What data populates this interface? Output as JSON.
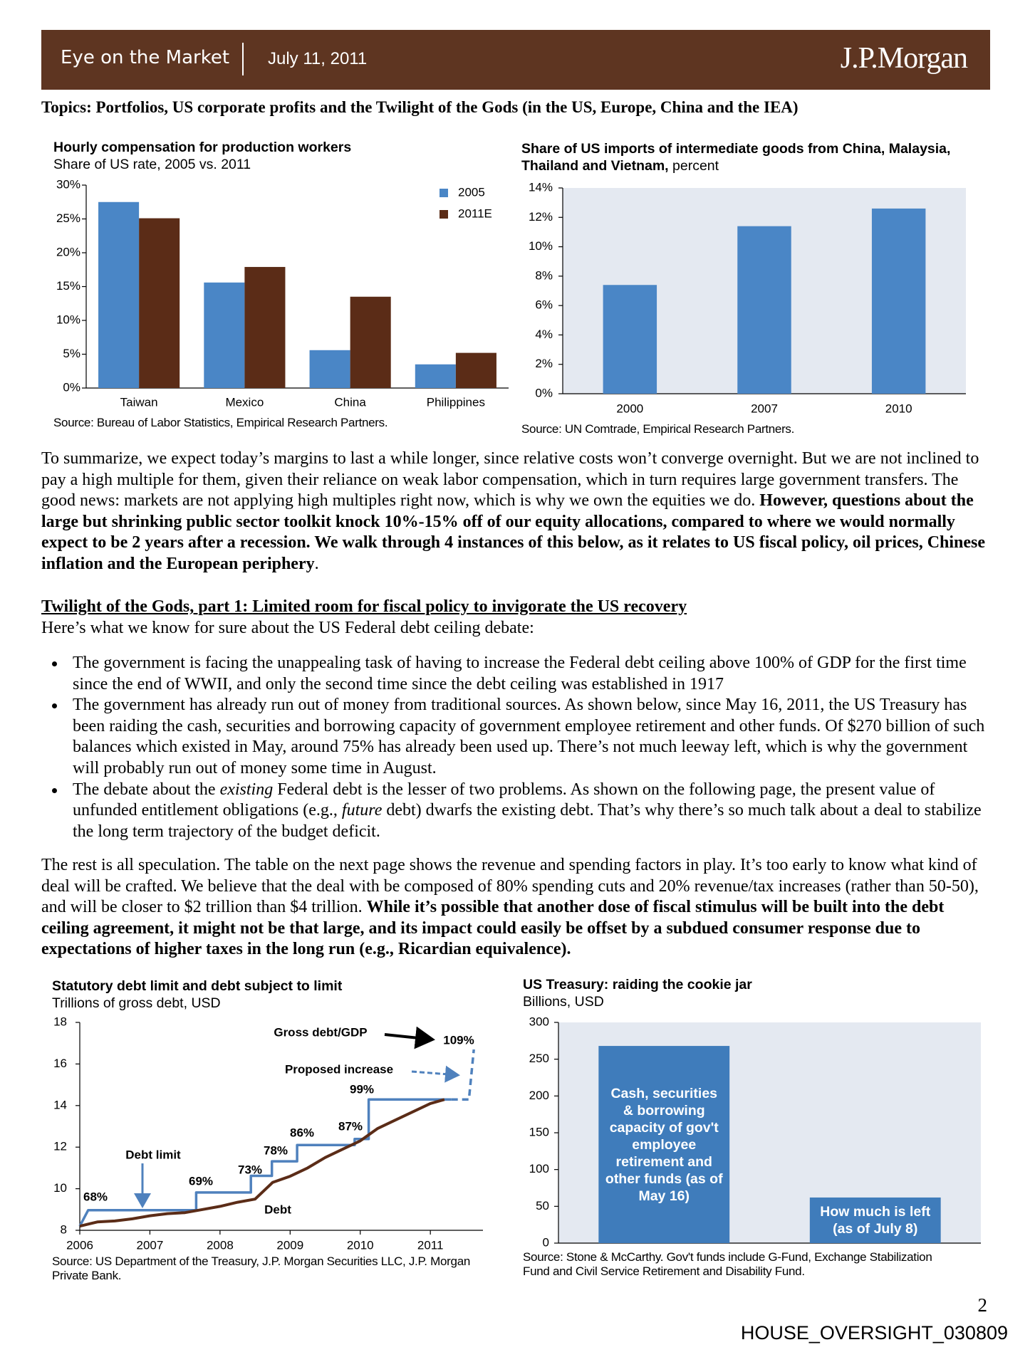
{
  "header": {
    "title": "Eye on the Market",
    "date": "July 11, 2011",
    "brand": "J.P.Morgan"
  },
  "topics": "Topics: Portfolios, US corporate profits and the Twilight of the Gods (in the US, Europe, China and the IEA)",
  "chart_data": [
    {
      "type": "bar",
      "title": "Hourly compensation for production workers",
      "subtitle": "Share of US rate, 2005 vs. 2011",
      "categories": [
        "Taiwan",
        "Mexico",
        "China",
        "Philippines"
      ],
      "series": [
        {
          "name": "2005",
          "color": "#4a86c6",
          "values": [
            27.5,
            15.6,
            5.6,
            3.5
          ]
        },
        {
          "name": "2011E",
          "color": "#5b2c17",
          "values": [
            25.1,
            17.9,
            13.5,
            5.2
          ]
        }
      ],
      "ylim": [
        0,
        30
      ],
      "yticks": [
        {
          "value": 0,
          "label": "0%"
        },
        {
          "value": 5,
          "label": "5%"
        },
        {
          "value": 10,
          "label": "10%"
        },
        {
          "value": 15,
          "label": "15%"
        },
        {
          "value": 20,
          "label": "20%"
        },
        {
          "value": 25,
          "label": "25%"
        },
        {
          "value": 30,
          "label": "30%"
        }
      ],
      "legend": "top-right",
      "source": "Source: Bureau of Labor Statistics, Empirical Research Partners."
    },
    {
      "type": "bar",
      "title": "Share of US imports of intermediate goods from China, Malaysia, Thailand and Vietnam,",
      "subtitle": "percent",
      "categories": [
        "2000",
        "2007",
        "2010"
      ],
      "values": [
        7.4,
        11.4,
        12.6
      ],
      "color": "#4a86c6",
      "ylim": [
        0,
        14
      ],
      "yticks": [
        {
          "value": 0,
          "label": "0%"
        },
        {
          "value": 2,
          "label": "2%"
        },
        {
          "value": 4,
          "label": "4%"
        },
        {
          "value": 6,
          "label": "6%"
        },
        {
          "value": 8,
          "label": "8%"
        },
        {
          "value": 10,
          "label": "10%"
        },
        {
          "value": 12,
          "label": "12%"
        },
        {
          "value": 14,
          "label": "14%"
        }
      ],
      "source": "Source: UN Comtrade, Empirical Research Partners."
    },
    {
      "type": "line",
      "title": "Statutory debt limit and debt subject to limit",
      "subtitle": "Trillions of gross debt, USD",
      "series": [
        {
          "name": "Debt limit",
          "color": "#4f81bd",
          "x": [
            2006,
            2006.12,
            2007.66,
            2007.66,
            2008.44,
            2008.44,
            2008.74,
            2008.74,
            2009.1,
            2009.1,
            2009.92,
            2009.92,
            2010.12,
            2010.12,
            2011.3
          ],
          "values": [
            8.2,
            8.97,
            8.97,
            9.82,
            9.82,
            10.62,
            10.62,
            11.32,
            11.32,
            12.1,
            12.1,
            12.39,
            12.39,
            14.29,
            14.29
          ]
        },
        {
          "name": "Proposed increase",
          "color": "#4f81bd",
          "style": "dashed",
          "x": [
            2011.3,
            2011.55,
            2011.62
          ],
          "values": [
            14.29,
            14.29,
            16.7
          ]
        },
        {
          "name": "Debt",
          "color": "#5b2c17",
          "x": [
            2006,
            2006.25,
            2006.5,
            2006.75,
            2007,
            2007.25,
            2007.5,
            2007.75,
            2008,
            2008.25,
            2008.5,
            2008.75,
            2009,
            2009.25,
            2009.5,
            2009.75,
            2010,
            2010.25,
            2010.5,
            2010.75,
            2011,
            2011.2
          ],
          "values": [
            8.2,
            8.4,
            8.45,
            8.55,
            8.7,
            8.8,
            8.85,
            9.0,
            9.15,
            9.35,
            9.5,
            10.3,
            10.6,
            11.0,
            11.5,
            11.9,
            12.3,
            12.9,
            13.3,
            13.7,
            14.1,
            14.29
          ]
        }
      ],
      "xlim": [
        2006,
        2011.75
      ],
      "xticks": [
        2006,
        2007,
        2008,
        2009,
        2010,
        2011
      ],
      "ylim": [
        8,
        18
      ],
      "yticks": [
        8,
        10,
        12,
        14,
        16,
        18
      ],
      "annotation": "Gross debt/GDP",
      "annotations": [
        "68%",
        "69%",
        "73%",
        "78%",
        "86%",
        "87%",
        "99%",
        "109%"
      ],
      "source": "Source: US Department of the Treasury, J.P. Morgan Securities LLC, J.P. Morgan Private Bank."
    },
    {
      "type": "bar",
      "title": "US Treasury:  raiding the cookie jar",
      "subtitle": "Billions, USD",
      "categories": [
        "Cash, securities & borrowing capacity of gov't employee retirement and other funds (as of May 16)",
        "How much is left (as of July 8)"
      ],
      "values": [
        268,
        62
      ],
      "color": "#3f7cbb",
      "label_position": "inside",
      "ylim": [
        0,
        300
      ],
      "yticks": [
        0,
        50,
        100,
        150,
        200,
        250,
        300
      ],
      "source": "Source: Stone & McCarthy.  Gov't funds include G-Fund, Exchange Stabilization Fund and Civil Service Retirement and Disability Fund."
    }
  ],
  "body": {
    "paragraph_1": [
      "To summarize, we expect today’s margins to last a while longer, since relative costs won’t converge overnight.  But we are not inclined to pay a high multiple for them, given their reliance on weak labor compensation, which in turn requires large government transfers.   The good news: markets are not applying high multiples right now, which is why we own the equities we do.  ",
      {
        "text": "However, questions about the large but shrinking public sector toolkit knock 10%-15% off of our equity allocations, compared to where we would normally expect to be 2 years after a recession.  We walk through 4 instances of this below, as it relates to US fiscal policy, oil prices, Chinese inflation and the European periphery",
        "style": "bold"
      },
      "."
    ],
    "section_heading": "Twilight of the Gods, part 1: Limited room for fiscal policy to invigorate the US recovery",
    "section_intro": "Here’s what we know for sure about the US Federal debt ceiling debate:",
    "bullets": [
      [
        "The government is facing the unappealing task of having to increase the Federal debt ceiling above 100% of GDP for the first time since the end of WWII, and only the second time since the debt ceiling was established in 1917"
      ],
      [
        "The government has already run out of money from traditional sources.  As shown below, since May 16, 2011, the US Treasury has been raiding the cash, securities and borrowing capacity of government employee retirement and other funds.  Of $270 billion of such balances which existed in May, around 75% has already been used up.  There’s not much leeway left, which is why the government will probably run out of money some time in August."
      ],
      [
        "The debate about the ",
        {
          "text": "existing",
          "style": "italic"
        },
        " Federal debt is the lesser of two problems.  As shown on the following page, the present value of unfunded entitlement obligations (e.g., ",
        {
          "text": "future",
          "style": "italic"
        },
        " debt) dwarfs the existing debt.  That’s why there’s so much talk about a deal to stabilize the long term trajectory of the budget deficit."
      ]
    ],
    "paragraph_2": [
      "The rest is all speculation.  The table on the next page shows the revenue and spending factors in play.  It’s too early to know what kind of deal will be crafted.  We believe that the deal with be composed of 80% spending cuts and 20% revenue/tax increases (rather than 50-50), and will be closer to $2 trillion than $4 trillion.  ",
      {
        "text": "While it’s possible that another dose of fiscal stimulus will be built into the debt ceiling agreement, it might not be that large, and its impact could easily be offset by a subdued consumer response due to expectations of higher taxes in the long run (e.g., Ricardian equivalence).",
        "style": "bold"
      }
    ]
  },
  "footer": {
    "page_number": "2",
    "document_id": "HOUSE_OVERSIGHT_030809"
  }
}
